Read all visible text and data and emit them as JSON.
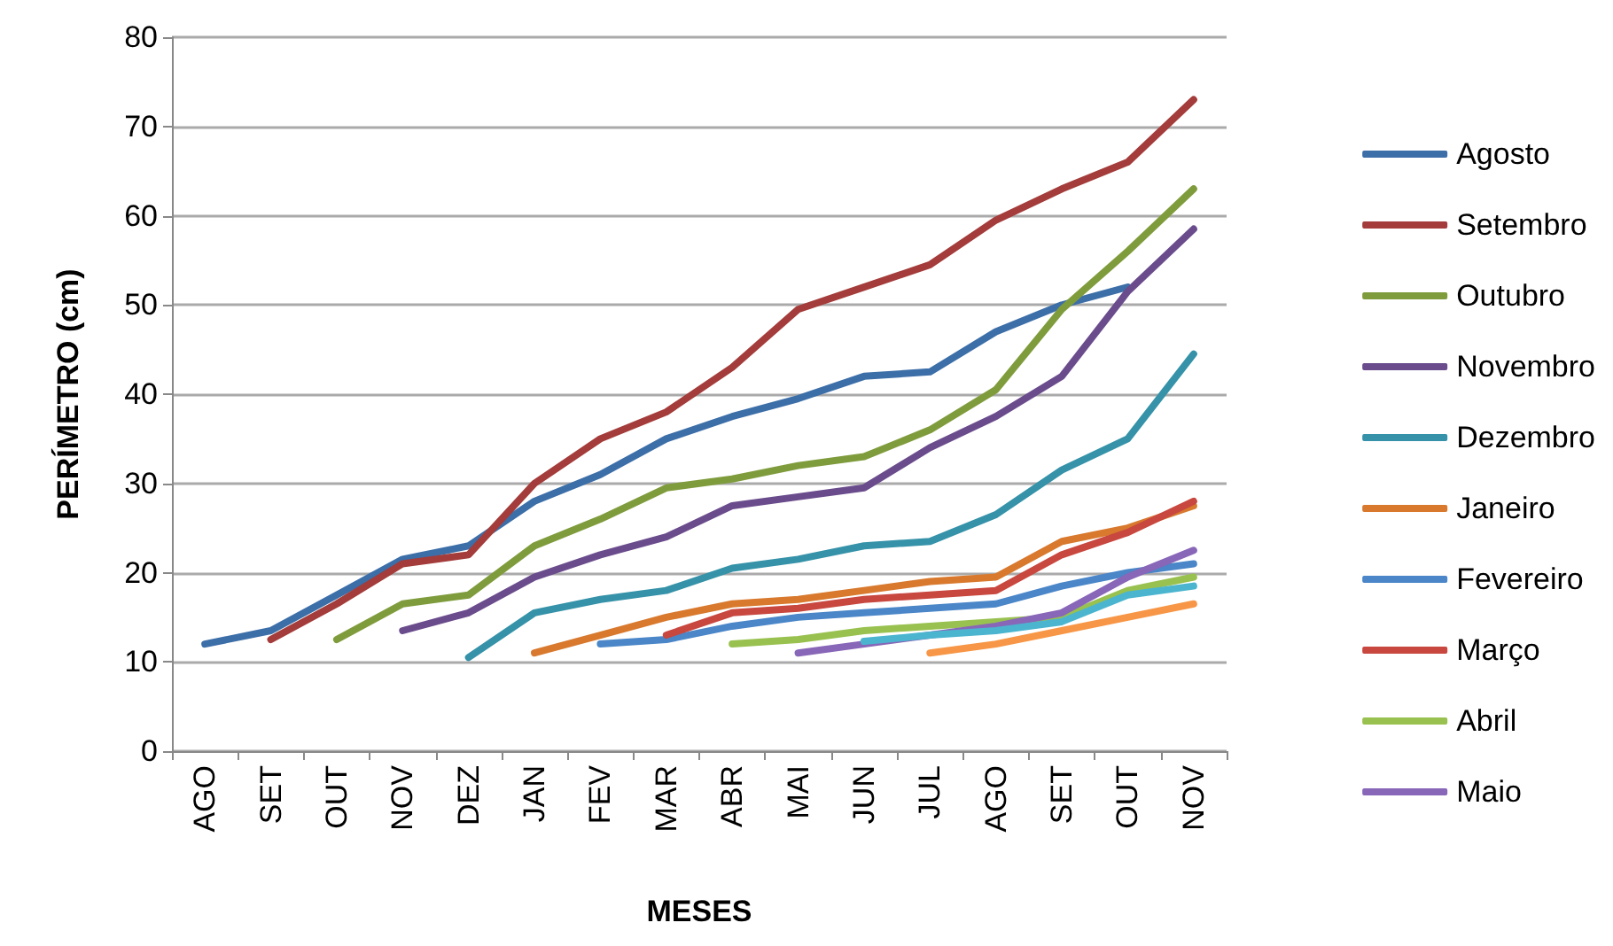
{
  "chart_data": {
    "type": "line",
    "xlabel": "MESES",
    "ylabel": "PERÍMETRO (cm)",
    "categories": [
      "AGO",
      "SET",
      "OUT",
      "NOV",
      "DEZ",
      "JAN",
      "FEV",
      "MAR",
      "ABR",
      "MAI",
      "JUN",
      "JUL",
      "AGO",
      "SET",
      "OUT",
      "NOV"
    ],
    "ylim": [
      0,
      80
    ],
    "yticks": [
      0,
      10,
      20,
      30,
      40,
      50,
      60,
      70,
      80
    ],
    "grid": "y",
    "legend": "right",
    "marker": "none",
    "line_style": "solid",
    "series": [
      {
        "name": "Agosto",
        "color": "#3c6ea8",
        "values": [
          12,
          13.5,
          17.5,
          21.5,
          23,
          28,
          31,
          35,
          37.5,
          39.5,
          42,
          42.5,
          47,
          50,
          52,
          null
        ]
      },
      {
        "name": "Setembro",
        "color": "#a33c3a",
        "values": [
          null,
          12.5,
          16.5,
          21,
          22,
          30,
          35,
          38,
          43,
          49.5,
          52,
          54.5,
          59.5,
          63,
          66,
          73
        ]
      },
      {
        "name": "Outubro",
        "color": "#7f9c3d",
        "values": [
          null,
          null,
          12.5,
          16.5,
          17.5,
          23,
          26,
          29.5,
          30.5,
          32,
          33,
          36,
          40.5,
          49.5,
          56,
          63
        ]
      },
      {
        "name": "Novembro",
        "color": "#6a4c8c",
        "values": [
          null,
          null,
          null,
          13.5,
          15.5,
          19.5,
          22,
          24,
          27.5,
          28.5,
          29.5,
          34,
          37.5,
          42,
          51.5,
          58.5
        ]
      },
      {
        "name": "Dezembro",
        "color": "#3592a8",
        "values": [
          null,
          null,
          null,
          null,
          10.5,
          15.5,
          17,
          18,
          20.5,
          21.5,
          23,
          23.5,
          26.5,
          31.5,
          35,
          44.5
        ]
      },
      {
        "name": "Janeiro",
        "color": "#d8792e",
        "values": [
          null,
          null,
          null,
          null,
          null,
          11,
          13,
          15,
          16.5,
          17,
          18,
          19,
          19.5,
          23.5,
          25,
          27.5
        ]
      },
      {
        "name": "Fevereiro",
        "color": "#4a86c8",
        "values": [
          null,
          null,
          null,
          null,
          null,
          null,
          12,
          12.5,
          14,
          15,
          15.5,
          16,
          16.5,
          18.5,
          20,
          21
        ]
      },
      {
        "name": "Março",
        "color": "#c8473f",
        "values": [
          null,
          null,
          null,
          null,
          null,
          null,
          null,
          13,
          15.5,
          16,
          17,
          17.5,
          18,
          22,
          24.5,
          28
        ]
      },
      {
        "name": "Abril",
        "color": "#98c14f",
        "values": [
          null,
          null,
          null,
          null,
          null,
          null,
          null,
          null,
          12,
          12.5,
          13.5,
          14,
          14.5,
          15,
          18,
          19.5
        ]
      },
      {
        "name": "Maio",
        "color": "#8866b8",
        "values": [
          null,
          null,
          null,
          null,
          null,
          null,
          null,
          null,
          null,
          11,
          12,
          13,
          14,
          15.5,
          19.5,
          22.5
        ]
      },
      {
        "color": "#4bb5cf",
        "values": [
          null,
          null,
          null,
          null,
          null,
          null,
          null,
          null,
          null,
          null,
          12.3,
          13,
          13.5,
          14.5,
          17.5,
          18.5
        ]
      },
      {
        "color": "#f79646",
        "values": [
          null,
          null,
          null,
          null,
          null,
          null,
          null,
          null,
          null,
          null,
          null,
          11,
          12,
          13.5,
          15,
          16.5
        ]
      }
    ]
  }
}
